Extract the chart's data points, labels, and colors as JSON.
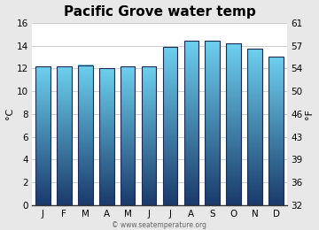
{
  "title": "Pacific Grove water temp",
  "months": [
    "J",
    "F",
    "M",
    "A",
    "M",
    "J",
    "J",
    "A",
    "S",
    "O",
    "N",
    "D"
  ],
  "values_c": [
    12.2,
    12.2,
    12.3,
    12.0,
    12.2,
    12.2,
    13.9,
    14.4,
    14.4,
    14.2,
    13.7,
    13.0
  ],
  "ylim_c": [
    0,
    16
  ],
  "yticks_c": [
    0,
    2,
    4,
    6,
    8,
    10,
    12,
    14,
    16
  ],
  "yticks_f": [
    32,
    36,
    39,
    43,
    46,
    50,
    54,
    57,
    61
  ],
  "ylabel_left": "°C",
  "ylabel_right": "°F",
  "bar_color_top": "#6dd0ee",
  "bar_color_bottom": "#1a3a6b",
  "bar_edge_color": "#1a2a50",
  "bg_color": "#e8e8e8",
  "plot_bg_color": "#e8e8e8",
  "plot_area_color": "#ffffff",
  "watermark": "© www.seatemperature.org",
  "title_fontsize": 11,
  "tick_fontsize": 7.5,
  "label_fontsize": 8
}
